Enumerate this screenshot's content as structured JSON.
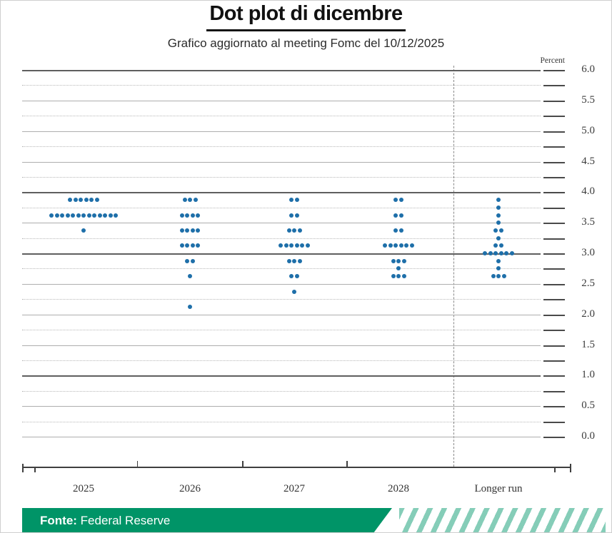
{
  "page": {
    "title": "Dot plot di dicembre",
    "subtitle": "Grafico aggiornato al meeting Fomc del 10/12/2025"
  },
  "footer": {
    "source_label": "Fonte:",
    "source_value": "Federal Reserve",
    "bar_color": "#009467",
    "stripe_color": "#85CDB8"
  },
  "chart_data": {
    "type": "scatter",
    "title": "Dot plot di dicembre",
    "subtitle": "Grafico aggiornato al meeting Fomc del 10/12/2025",
    "unit_label": "Percent",
    "ylabel": "Percent",
    "ylim": [
      0.0,
      6.0
    ],
    "ytick_step": 0.5,
    "yminor_step": 0.25,
    "ytick_labels": [
      "6.0",
      "5.5",
      "5.0",
      "4.5",
      "4.0",
      "3.5",
      "3.0",
      "2.5",
      "2.0",
      "1.5",
      "1.0",
      "0.5",
      "0.0"
    ],
    "emphasized_gridlines": [
      6.0,
      4.0,
      3.0,
      1.0
    ],
    "grid": true,
    "legend": "none",
    "dot_color": "#1E6FA9",
    "categories": [
      "2025",
      "2026",
      "2027",
      "2028",
      "Longer run"
    ],
    "series": [
      {
        "category": "2025",
        "dots": [
          {
            "rate": 3.875,
            "count": 6
          },
          {
            "rate": 3.625,
            "count": 13
          },
          {
            "rate": 3.375,
            "count": 1
          }
        ]
      },
      {
        "category": "2026",
        "dots": [
          {
            "rate": 3.875,
            "count": 3
          },
          {
            "rate": 3.625,
            "count": 4
          },
          {
            "rate": 3.375,
            "count": 4
          },
          {
            "rate": 3.125,
            "count": 4
          },
          {
            "rate": 2.875,
            "count": 2
          },
          {
            "rate": 2.625,
            "count": 1
          },
          {
            "rate": 2.125,
            "count": 1
          }
        ]
      },
      {
        "category": "2027",
        "dots": [
          {
            "rate": 3.875,
            "count": 2
          },
          {
            "rate": 3.625,
            "count": 2
          },
          {
            "rate": 3.375,
            "count": 3
          },
          {
            "rate": 3.125,
            "count": 6
          },
          {
            "rate": 2.875,
            "count": 3
          },
          {
            "rate": 2.625,
            "count": 2
          },
          {
            "rate": 2.375,
            "count": 1
          }
        ]
      },
      {
        "category": "2028",
        "dots": [
          {
            "rate": 3.875,
            "count": 2
          },
          {
            "rate": 3.625,
            "count": 2
          },
          {
            "rate": 3.375,
            "count": 2
          },
          {
            "rate": 3.125,
            "count": 6
          },
          {
            "rate": 2.875,
            "count": 3
          },
          {
            "rate": 2.75,
            "count": 1
          },
          {
            "rate": 2.625,
            "count": 3
          }
        ]
      },
      {
        "category": "Longer run",
        "dots": [
          {
            "rate": 3.875,
            "count": 1
          },
          {
            "rate": 3.75,
            "count": 1
          },
          {
            "rate": 3.625,
            "count": 1
          },
          {
            "rate": 3.5,
            "count": 1
          },
          {
            "rate": 3.375,
            "count": 2
          },
          {
            "rate": 3.25,
            "count": 1
          },
          {
            "rate": 3.125,
            "count": 2
          },
          {
            "rate": 3.0,
            "count": 6
          },
          {
            "rate": 2.875,
            "count": 1
          },
          {
            "rate": 2.75,
            "count": 1
          },
          {
            "rate": 2.625,
            "count": 3
          }
        ]
      }
    ]
  }
}
